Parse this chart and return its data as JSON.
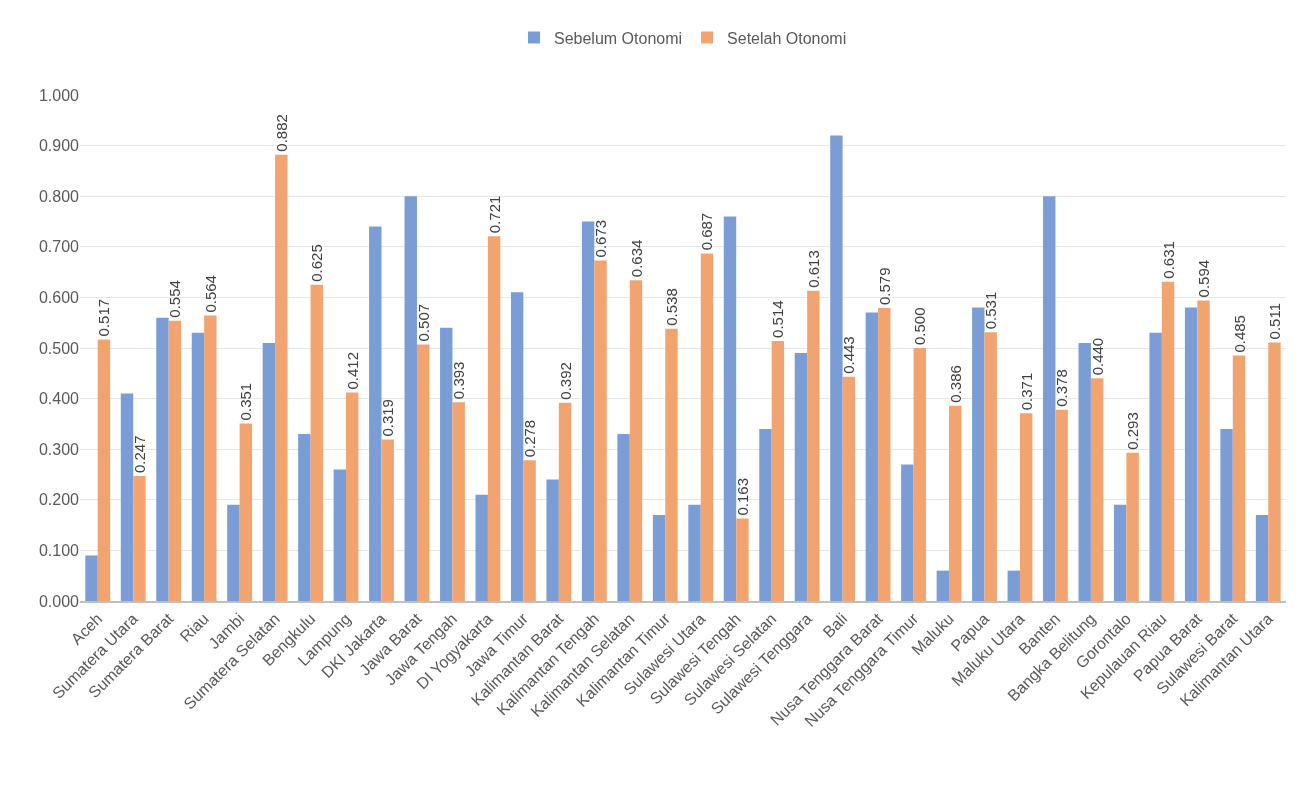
{
  "chart_data": {
    "type": "bar",
    "categories": [
      "Aceh",
      "Sumatera Utara",
      "Sumatera Barat",
      "Riau",
      "Jambi",
      "Sumatera Selatan",
      "Bengkulu",
      "Lampung",
      "DKI Jakarta",
      "Jawa Barat",
      "Jawa Tengah",
      "DI Yogyakarta",
      "Jawa Timur",
      "Kalimantan Barat",
      "Kalimantan Tengah",
      "Kalimantan Selatan",
      "Kalimantan Timur",
      "Sulawesi Utara",
      "Sulawesi Tengah",
      "Sulawesi Selatan",
      "Sulawesi Tenggara",
      "Bali",
      "Nusa Tenggara Barat",
      "Nusa Tenggara Timur",
      "Maluku",
      "Papua",
      "Maluku Utara",
      "Banten",
      "Bangka Belitung",
      "Gorontalo",
      "Kepulauan Riau",
      "Papua Barat",
      "Sulawesi Barat",
      "Kalimantan Utara"
    ],
    "series": [
      {
        "name": "Sebelum Otonomi",
        "color": "#7b9dd6",
        "values": [
          0.09,
          0.41,
          0.56,
          0.53,
          0.19,
          0.51,
          0.33,
          0.26,
          0.74,
          0.8,
          0.54,
          0.21,
          0.61,
          0.24,
          0.75,
          0.33,
          0.17,
          0.19,
          0.76,
          0.34,
          0.49,
          0.92,
          0.57,
          0.27,
          0.06,
          0.58,
          0.06,
          0.8,
          0.51,
          0.19,
          0.53,
          0.58,
          0.34,
          0.17
        ]
      },
      {
        "name": "Setelah Otonomi",
        "color": "#f1a46f",
        "values": [
          0.517,
          0.247,
          0.554,
          0.564,
          0.351,
          0.882,
          0.625,
          0.412,
          0.319,
          0.507,
          0.393,
          0.721,
          0.278,
          0.392,
          0.673,
          0.634,
          0.538,
          0.687,
          0.163,
          0.514,
          0.613,
          0.443,
          0.579,
          0.5,
          0.386,
          0.531,
          0.371,
          0.378,
          0.44,
          0.293,
          0.631,
          0.594,
          0.485,
          0.511
        ],
        "value_labels": [
          "0.517",
          "0.247",
          "0.554",
          "0.564",
          "0.351",
          "0.882",
          "0.625",
          "0.412",
          "0.319",
          "0.507",
          "0.393",
          "0.721",
          "0.278",
          "0.392",
          "0.673",
          "0.634",
          "0.538",
          "0.687",
          "0.163",
          "0.514",
          "0.613",
          "0.443",
          "0.579",
          "0.500",
          "0.386",
          "0.531",
          "0.371",
          "0.378",
          "0.440",
          "0.293",
          "0.631",
          "0.594",
          "0.485",
          "0.511"
        ]
      }
    ],
    "ylim": [
      0,
      1
    ],
    "yticks": [
      {
        "value": 0,
        "label": "0.000"
      },
      {
        "value": 0.1,
        "label": "0.100"
      },
      {
        "value": 0.2,
        "label": "0.200"
      },
      {
        "value": 0.3,
        "label": "0.300"
      },
      {
        "value": 0.4,
        "label": "0.400"
      },
      {
        "value": 0.5,
        "label": "0.500"
      },
      {
        "value": 0.6,
        "label": "0.600"
      },
      {
        "value": 0.7,
        "label": "0.700"
      },
      {
        "value": 0.8,
        "label": "0.800"
      },
      {
        "value": 0.9,
        "label": "0.900"
      },
      {
        "value": 1,
        "label": "1.000"
      }
    ],
    "grid": "y",
    "legend": "top"
  }
}
